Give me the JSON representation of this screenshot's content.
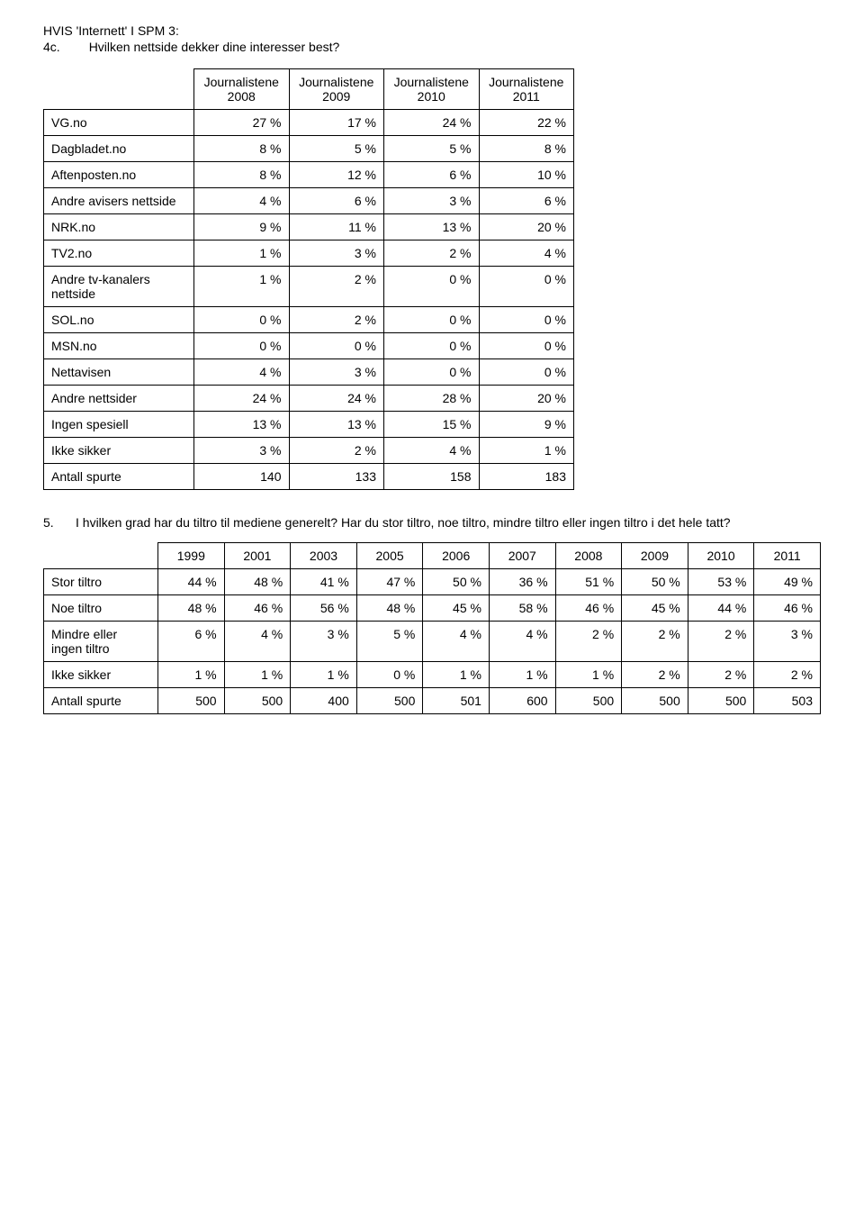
{
  "header": {
    "line1": "HVIS 'Internett' I SPM 3:",
    "num": "4c.",
    "text": "Hvilken nettside dekker dine interesser best?"
  },
  "table1": {
    "columns": [
      "Journalistene 2008",
      "Journalistene 2009",
      "Journalistene 2010",
      "Journalistene 2011"
    ],
    "rows": [
      {
        "label": "VG.no",
        "cells": [
          "27 %",
          "17 %",
          "24 %",
          "22 %"
        ]
      },
      {
        "label": "Dagbladet.no",
        "cells": [
          "8 %",
          "5 %",
          "5 %",
          "8 %"
        ]
      },
      {
        "label": "Aftenposten.no",
        "cells": [
          "8 %",
          "12 %",
          "6 %",
          "10 %"
        ]
      },
      {
        "label": "Andre avisers nettside",
        "cells": [
          "4 %",
          "6 %",
          "3 %",
          "6 %"
        ]
      },
      {
        "label": "NRK.no",
        "cells": [
          "9 %",
          "11 %",
          "13 %",
          "20 %"
        ]
      },
      {
        "label": "TV2.no",
        "cells": [
          "1 %",
          "3 %",
          "2 %",
          "4 %"
        ]
      },
      {
        "label": "Andre tv-kanalers nettside",
        "cells": [
          "1 %",
          "2 %",
          "0 %",
          "0 %"
        ]
      },
      {
        "label": "SOL.no",
        "cells": [
          "0 %",
          "2 %",
          "0 %",
          "0 %"
        ]
      },
      {
        "label": "MSN.no",
        "cells": [
          "0 %",
          "0 %",
          "0 %",
          "0 %"
        ]
      },
      {
        "label": "Nettavisen",
        "cells": [
          "4 %",
          "3 %",
          "0 %",
          "0 %"
        ]
      },
      {
        "label": "Andre nettsider",
        "cells": [
          "24 %",
          "24 %",
          "28 %",
          "20 %"
        ]
      },
      {
        "label": "Ingen spesiell",
        "cells": [
          "13 %",
          "13 %",
          "15 %",
          "9 %"
        ]
      },
      {
        "label": "Ikke sikker",
        "cells": [
          "3 %",
          "2 %",
          "4 %",
          "1 %"
        ]
      },
      {
        "label": "Antall spurte",
        "cells": [
          "140",
          "133",
          "158",
          "183"
        ]
      }
    ]
  },
  "question5": {
    "num": "5.",
    "text": "I hvilken grad har du tiltro til mediene generelt? Har du stor tiltro, noe tiltro, mindre tiltro eller ingen tiltro i det hele tatt?"
  },
  "table2": {
    "columns": [
      "1999",
      "2001",
      "2003",
      "2005",
      "2006",
      "2007",
      "2008",
      "2009",
      "2010",
      "2011"
    ],
    "rows": [
      {
        "label": "Stor tiltro",
        "cells": [
          "44 %",
          "48 %",
          "41 %",
          "47 %",
          "50 %",
          "36 %",
          "51 %",
          "50 %",
          "53 %",
          "49 %"
        ]
      },
      {
        "label": "Noe tiltro",
        "cells": [
          "48 %",
          "46 %",
          "56 %",
          "48 %",
          "45 %",
          "58 %",
          "46 %",
          "45 %",
          "44 %",
          "46 %"
        ]
      },
      {
        "label": "Mindre eller ingen tiltro",
        "cells": [
          "6 %",
          "4 %",
          "3 %",
          "5 %",
          "4 %",
          "4 %",
          "2 %",
          "2 %",
          "2 %",
          "3 %"
        ]
      },
      {
        "label": "Ikke sikker",
        "cells": [
          "1 %",
          "1 %",
          "1 %",
          "0 %",
          "1 %",
          "1 %",
          "1 %",
          "2 %",
          "2 %",
          "2 %"
        ]
      },
      {
        "label": "Antall spurte",
        "cells": [
          "500",
          "500",
          "400",
          "500",
          "501",
          "600",
          "500",
          "500",
          "500",
          "503"
        ]
      }
    ]
  }
}
